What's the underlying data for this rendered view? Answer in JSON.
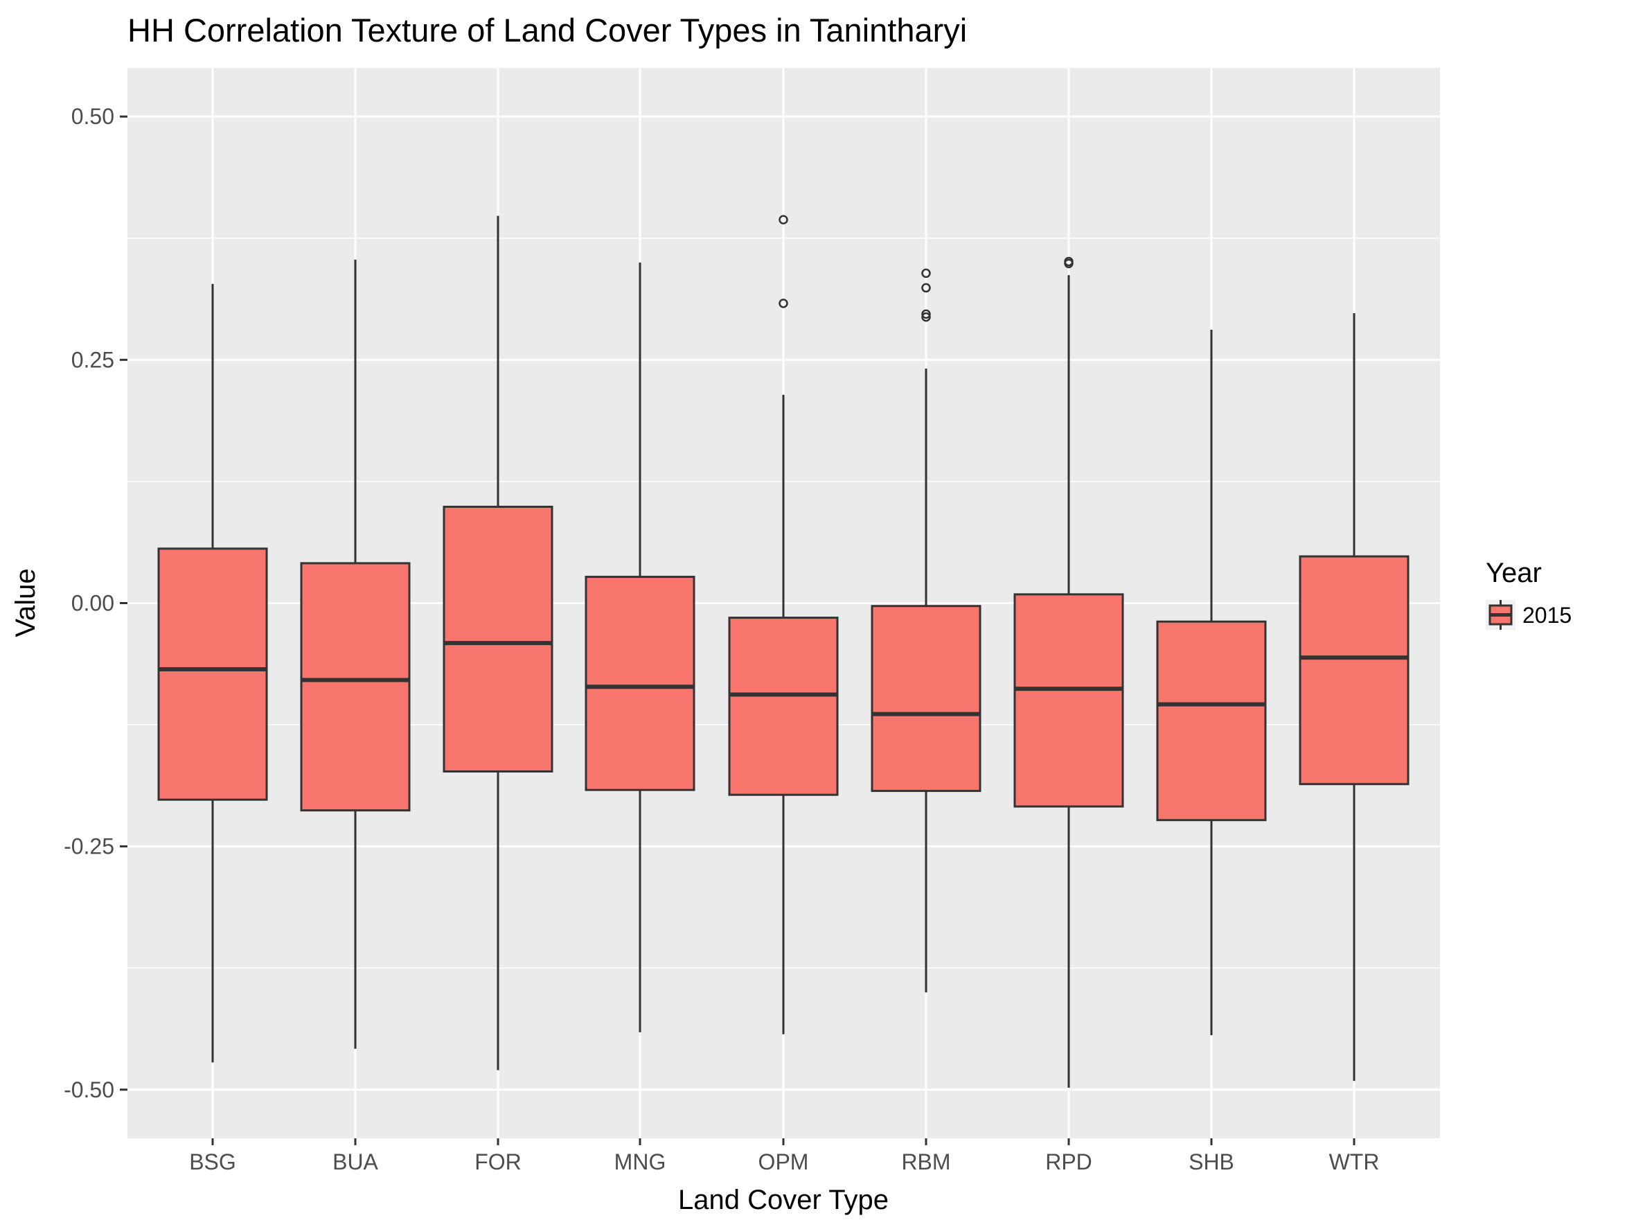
{
  "chart_data": {
    "type": "boxplot",
    "title": "HH Correlation Texture of Land Cover Types in Tanintharyi",
    "xlabel": "Land Cover Type",
    "ylabel": "Value",
    "ylim": [
      -0.55,
      0.55
    ],
    "yticks": [
      -0.5,
      -0.25,
      0.0,
      0.25,
      0.5
    ],
    "ytick_labels": [
      "-0.50",
      "-0.25",
      "0.00",
      "0.25",
      "0.50"
    ],
    "grid": true,
    "legend": {
      "title": "Year",
      "position": "right",
      "entries": [
        {
          "label": "2015",
          "color": "#F8766D"
        }
      ]
    },
    "colors": {
      "fill": "#F8766D",
      "stroke": "#333333",
      "panel_bg": "#EBEBEB",
      "grid_major": "#FFFFFF",
      "text": "#000000",
      "tick_text": "#4D4D4D"
    },
    "categories": [
      "BSG",
      "BUA",
      "FOR",
      "MNG",
      "OPM",
      "RBM",
      "RPD",
      "SHB",
      "WTR"
    ],
    "series": [
      {
        "name": "2015",
        "boxes": [
          {
            "category": "BSG",
            "whisker_low": -0.472,
            "q1": -0.202,
            "median": -0.068,
            "q3": 0.056,
            "whisker_high": 0.328,
            "outliers": []
          },
          {
            "category": "BUA",
            "whisker_low": -0.458,
            "q1": -0.213,
            "median": -0.079,
            "q3": 0.041,
            "whisker_high": 0.353,
            "outliers": []
          },
          {
            "category": "FOR",
            "whisker_low": -0.48,
            "q1": -0.173,
            "median": -0.041,
            "q3": 0.099,
            "whisker_high": 0.398,
            "outliers": []
          },
          {
            "category": "MNG",
            "whisker_low": -0.441,
            "q1": -0.192,
            "median": -0.086,
            "q3": 0.027,
            "whisker_high": 0.35,
            "outliers": []
          },
          {
            "category": "OPM",
            "whisker_low": -0.443,
            "q1": -0.197,
            "median": -0.094,
            "q3": -0.015,
            "whisker_high": 0.214,
            "outliers": [
              0.394,
              0.308
            ]
          },
          {
            "category": "RBM",
            "whisker_low": -0.4,
            "q1": -0.193,
            "median": -0.114,
            "q3": -0.003,
            "whisker_high": 0.241,
            "outliers": [
              0.339,
              0.324,
              0.297,
              0.294
            ]
          },
          {
            "category": "RPD",
            "whisker_low": -0.498,
            "q1": -0.209,
            "median": -0.088,
            "q3": 0.009,
            "whisker_high": 0.337,
            "outliers": [
              0.351,
              0.349
            ]
          },
          {
            "category": "SHB",
            "whisker_low": -0.444,
            "q1": -0.223,
            "median": -0.104,
            "q3": -0.019,
            "whisker_high": 0.281,
            "outliers": []
          },
          {
            "category": "WTR",
            "whisker_low": -0.491,
            "q1": -0.186,
            "median": -0.056,
            "q3": 0.048,
            "whisker_high": 0.298,
            "outliers": []
          }
        ]
      }
    ]
  }
}
